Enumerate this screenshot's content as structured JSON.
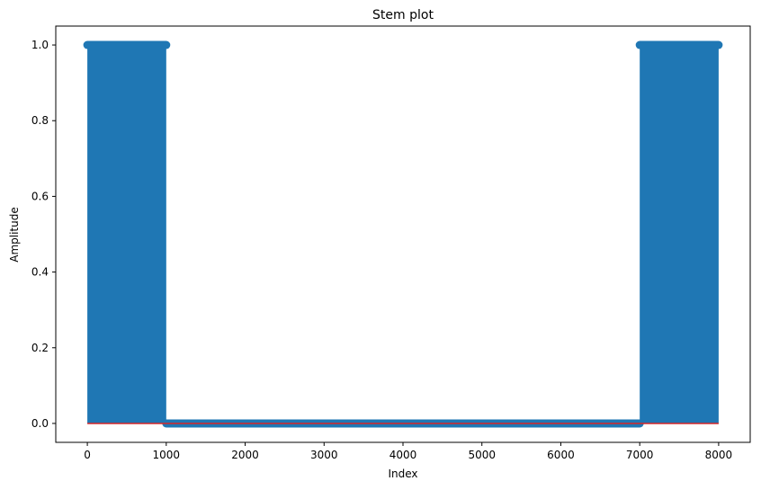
{
  "chart_data": {
    "type": "stem",
    "title": "Stem plot",
    "xlabel": "Index",
    "ylabel": "Amplitude",
    "xlim": [
      -400,
      8400
    ],
    "ylim": [
      -0.05,
      1.05
    ],
    "xticks": [
      0,
      1000,
      2000,
      3000,
      4000,
      5000,
      6000,
      7000,
      8000
    ],
    "yticks": [
      0.0,
      0.2,
      0.4,
      0.6,
      0.8,
      1.0
    ],
    "xtick_labels": [
      "0",
      "1000",
      "2000",
      "3000",
      "4000",
      "5000",
      "6000",
      "7000",
      "8000"
    ],
    "ytick_labels": [
      "0.0",
      "0.2",
      "0.4",
      "0.6",
      "0.8",
      "1.0"
    ],
    "segments": [
      {
        "x_start": 0,
        "x_end": 1000,
        "value": 1.0
      },
      {
        "x_start": 1000,
        "x_end": 7000,
        "value": 0.0
      },
      {
        "x_start": 7000,
        "x_end": 8000,
        "value": 1.0
      }
    ],
    "baseline": 0.0,
    "colors": {
      "markers": "#1f77b4",
      "baseline": "#d62728",
      "axes": "#000000"
    },
    "grid": false,
    "legend": "none"
  }
}
